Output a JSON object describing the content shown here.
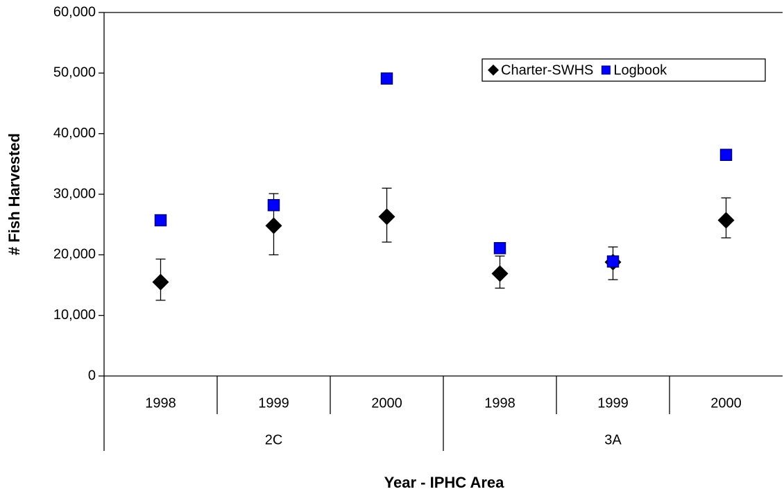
{
  "chart_data": {
    "type": "scatter",
    "x_label": "Year - IPHC Area",
    "y_label": "# Fish Harvested",
    "categories": [
      "1998",
      "1999",
      "2000",
      "1998",
      "1999",
      "2000"
    ],
    "groups": [
      "2C",
      "3A"
    ],
    "series": [
      {
        "name": "Charter-SWHS",
        "color": "#000000",
        "marker": "diamond",
        "values": [
          15500,
          24800,
          26300,
          16900,
          18800,
          25700
        ],
        "lower": [
          12500,
          20000,
          22100,
          14500,
          15900,
          22800
        ],
        "upper": [
          19300,
          30100,
          31000,
          19800,
          21300,
          29400
        ]
      },
      {
        "name": "Logbook",
        "color": "#0000ff",
        "marker": "square",
        "values": [
          25700,
          28200,
          49100,
          21100,
          18900,
          36500
        ]
      }
    ],
    "ylim": [
      0,
      60000
    ],
    "yticks": [
      0,
      {
        "value": 10000,
        "label": "10,000"
      },
      {
        "value": 20000,
        "label": "20,000"
      },
      {
        "value": 30000,
        "label": "30,000"
      },
      {
        "value": 40000,
        "label": "40,000"
      },
      {
        "value": 50000,
        "label": "50,000"
      },
      {
        "value": 60000,
        "label": "60,000"
      }
    ],
    "grid": false,
    "legend": "top-right"
  }
}
